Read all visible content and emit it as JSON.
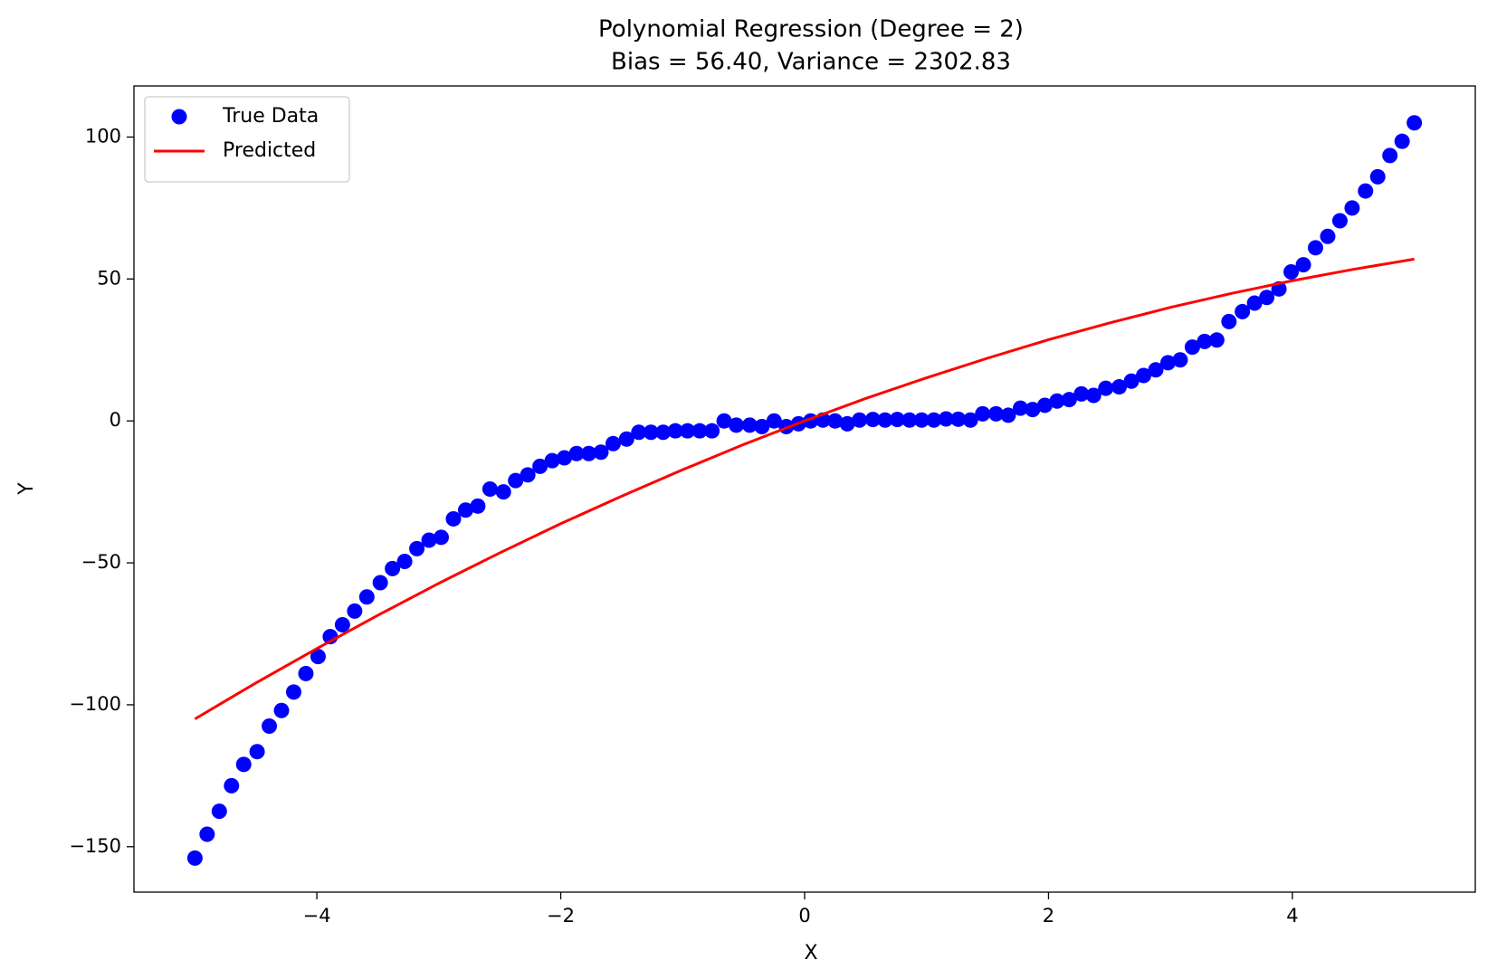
{
  "chart_data": {
    "type": "scatter",
    "title": "Polynomial Regression (Degree = 2)",
    "subtitle": "Bias = 56.40, Variance = 2302.83",
    "x_label": "X",
    "y_label": "Y",
    "legend": "upper left",
    "xlim": [
      -5.5,
      5.5
    ],
    "ylim": [
      -166,
      118
    ],
    "xticks": [
      {
        "value": -4,
        "label": "−4"
      },
      {
        "value": -2,
        "label": "−2"
      },
      0,
      2,
      4
    ],
    "yticks": [
      {
        "value": -150,
        "label": "−150"
      },
      {
        "value": -100,
        "label": "−100"
      },
      {
        "value": -50,
        "label": "−50"
      },
      0,
      50,
      100
    ],
    "series": [
      {
        "name": "True Data",
        "type": "scatter",
        "color": "#0000ff",
        "x": [
          -5.0,
          -4.9,
          -4.8,
          -4.7,
          -4.6,
          -4.49,
          -4.39,
          -4.29,
          -4.19,
          -4.09,
          -3.99,
          -3.89,
          -3.79,
          -3.69,
          -3.59,
          -3.48,
          -3.38,
          -3.28,
          -3.18,
          -3.08,
          -2.98,
          -2.88,
          -2.78,
          -2.68,
          -2.58,
          -2.47,
          -2.37,
          -2.27,
          -2.17,
          -2.07,
          -1.97,
          -1.87,
          -1.77,
          -1.67,
          -1.57,
          -1.46,
          -1.36,
          -1.26,
          -1.16,
          -1.06,
          -0.96,
          -0.86,
          -0.76,
          -0.66,
          -0.56,
          -0.45,
          -0.35,
          -0.25,
          -0.15,
          -0.05,
          0.05,
          0.15,
          0.25,
          0.35,
          0.45,
          0.56,
          0.66,
          0.76,
          0.86,
          0.96,
          1.06,
          1.16,
          1.26,
          1.36,
          1.46,
          1.57,
          1.67,
          1.77,
          1.87,
          1.97,
          2.07,
          2.17,
          2.27,
          2.37,
          2.47,
          2.58,
          2.68,
          2.78,
          2.88,
          2.98,
          3.08,
          3.18,
          3.28,
          3.38,
          3.48,
          3.59,
          3.69,
          3.79,
          3.89,
          3.99,
          4.09,
          4.19,
          4.29,
          4.39,
          4.49,
          4.6,
          4.7,
          4.8,
          4.9,
          5.0
        ],
        "values": [
          -154,
          -145.6,
          -137.5,
          -128.5,
          -121,
          -116.5,
          -107.5,
          -102,
          -95.5,
          -89,
          -83,
          -76,
          -71.8,
          -67,
          -62,
          -57,
          -52,
          -49.5,
          -45,
          -42,
          -41,
          -34.5,
          -31.4,
          -30,
          -24,
          -25,
          -21,
          -19,
          -16,
          -14,
          -13,
          -11.5,
          -11.5,
          -11,
          -8,
          -6.4,
          -4,
          -4,
          -4,
          -3.5,
          -3.5,
          -3.5,
          -3.5,
          0,
          -1.5,
          -1.5,
          -2,
          0,
          -2,
          -1,
          0,
          0.3,
          0,
          -1,
          0.3,
          0.5,
          0.3,
          0.5,
          0.3,
          0.3,
          0.3,
          0.7,
          0.6,
          0.3,
          2.5,
          2.5,
          2,
          4.5,
          4,
          5.5,
          7,
          7.5,
          9.5,
          9,
          11.5,
          12,
          14,
          16,
          18,
          20.5,
          21.5,
          26,
          28,
          28.5,
          35,
          38.5,
          41.5,
          43.5,
          46.5,
          52.5,
          55,
          61,
          65,
          70.5,
          75,
          81,
          86,
          93.5,
          98.5,
          105
        ]
      },
      {
        "name": "Predicted",
        "type": "line",
        "color": "#ff0000",
        "x": [
          -5,
          -4.5,
          -4,
          -3.5,
          -3,
          -2.5,
          -2,
          -1.5,
          -1,
          -0.5,
          0,
          0.5,
          1,
          1.5,
          2,
          2.5,
          3,
          3.5,
          4,
          4.5,
          5
        ],
        "values": [
          -105,
          -92.3,
          -80.2,
          -68.5,
          -57.2,
          -46.5,
          -36.2,
          -26.5,
          -17.2,
          -8.3,
          0,
          7.9,
          15.2,
          22.1,
          28.6,
          34.5,
          40.0,
          44.9,
          49.4,
          53.4,
          57.0
        ]
      }
    ]
  }
}
